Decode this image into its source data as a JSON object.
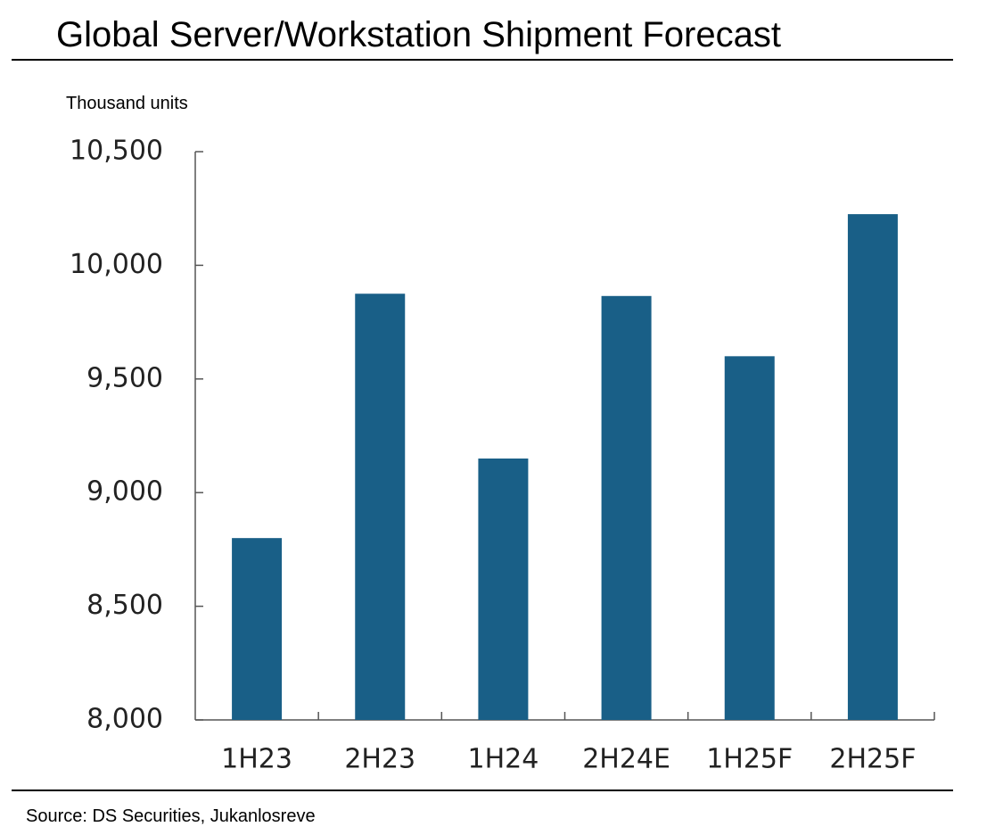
{
  "page_title": "Global Server/Workstation Shipment Forecast",
  "unit_label": "Thousand units",
  "source_note": "Source: DS Securities, Jukanlosreve",
  "colors": {
    "bar": "#195f87",
    "axis": "#555555",
    "text": "#222222",
    "rule": "#000000"
  },
  "chart_data": {
    "type": "bar",
    "title": "Global Server/Workstation Shipment Forecast",
    "ylabel": "Thousand units",
    "xlabel": "",
    "categories": [
      "1H23",
      "2H23",
      "1H24",
      "2H24E",
      "1H25F",
      "2H25F"
    ],
    "values": [
      8800,
      9875,
      9150,
      9865,
      9600,
      10225
    ],
    "ylim": [
      8000,
      10500
    ],
    "yticks": [
      8000,
      8500,
      9000,
      9500,
      10000,
      10500
    ],
    "ytick_labels": [
      "8,000",
      "8,500",
      "9,000",
      "9,500",
      "10,000",
      "10,500"
    ],
    "grid": false,
    "legend": "none"
  }
}
